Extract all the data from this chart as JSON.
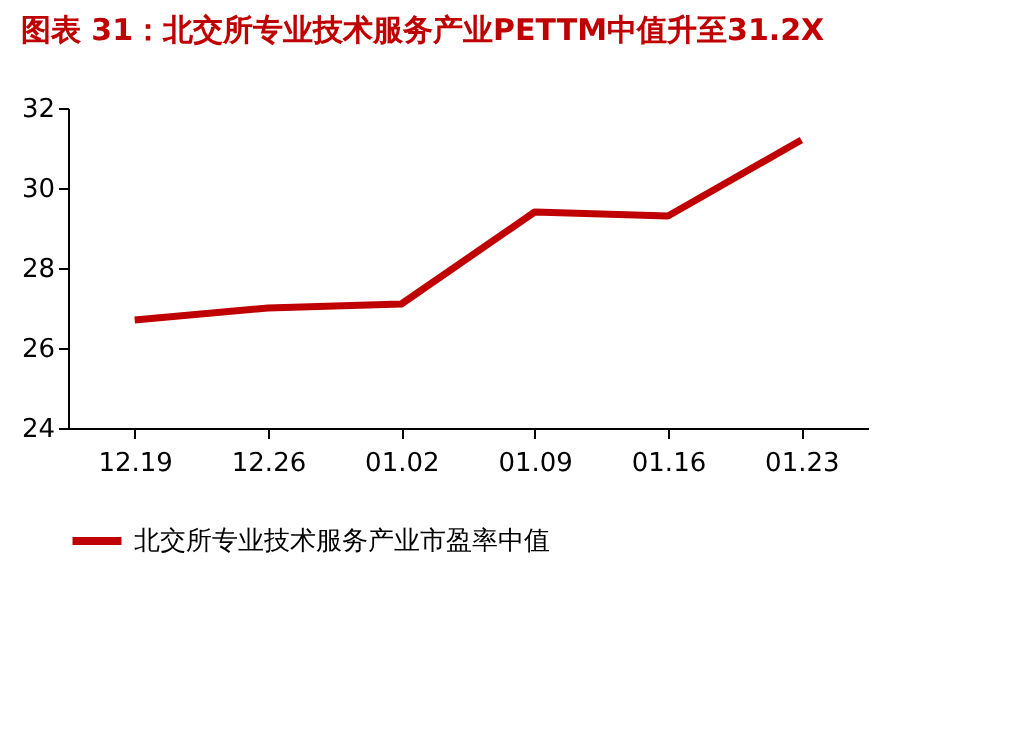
{
  "chart_data": {
    "type": "line",
    "title": "图表 31：北交所专业技术服务产业PETTM中值升至31.2X",
    "categories": [
      "12.19",
      "12.26",
      "01.02",
      "01.09",
      "01.16",
      "01.23"
    ],
    "series": [
      {
        "name": "北交所专业技术服务产业市盈率中值",
        "color": "#c00000",
        "values": [
          26.7,
          27.0,
          27.1,
          29.4,
          29.3,
          31.2
        ]
      }
    ],
    "ylim": [
      24,
      32
    ],
    "yticks": [
      24,
      26,
      28,
      30,
      32
    ],
    "grid": false,
    "legend": "bottom",
    "marker": "none",
    "line_style": "solid"
  }
}
